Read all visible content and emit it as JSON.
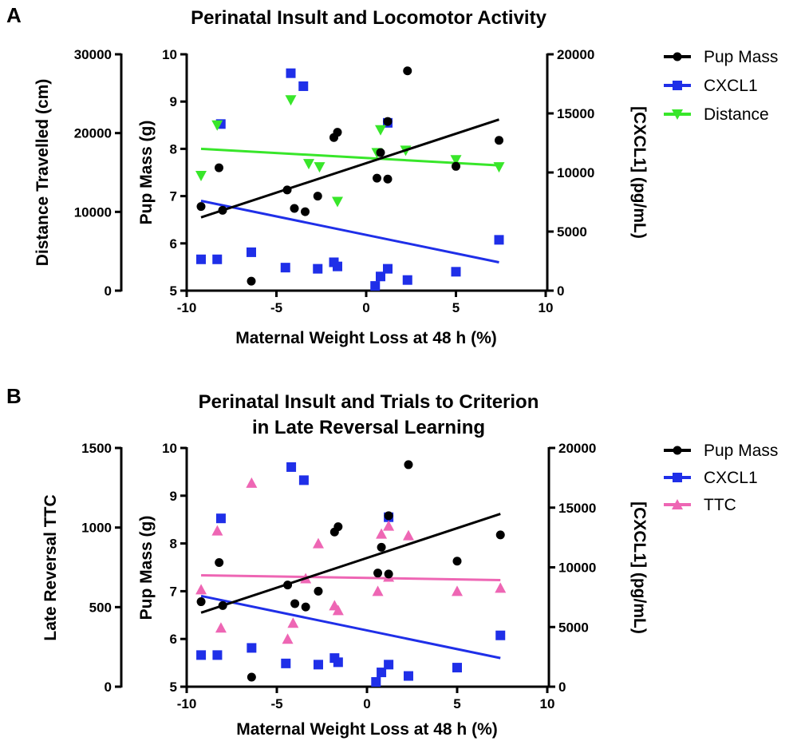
{
  "chart_data": [
    {
      "panel_label": "A",
      "type": "scatter",
      "title": [
        "Perinatal Insult and Locomotor Activity"
      ],
      "xlabel": "Maternal Weight Loss at 48 h (%)",
      "xlim": [
        -10,
        10
      ],
      "xticks": [
        -10,
        -5,
        0,
        5,
        10
      ],
      "axes": {
        "outer_left": {
          "label": "Distance Travelled (cm)",
          "lim": [
            0,
            30000
          ],
          "ticks": [
            0,
            10000,
            20000,
            30000
          ]
        },
        "left": {
          "label": "Pup Mass (g)",
          "lim": [
            5,
            10
          ],
          "ticks": [
            5,
            6,
            7,
            8,
            9,
            10
          ]
        },
        "right": {
          "label": "[CXCL1] (pg/mL)",
          "lim": [
            0,
            20000
          ],
          "ticks": [
            0,
            5000,
            10000,
            15000,
            20000
          ]
        }
      },
      "legend_position": "top-right",
      "series": [
        {
          "name": "Pup Mass",
          "axis": "left",
          "marker": "circle",
          "color": "#000000",
          "points": [
            [
              -9.2,
              6.78
            ],
            [
              -8.2,
              7.6
            ],
            [
              -8.0,
              6.7
            ],
            [
              -6.4,
              5.2
            ],
            [
              -4.4,
              7.13
            ],
            [
              -4.0,
              6.74
            ],
            [
              -3.4,
              6.67
            ],
            [
              -2.7,
              7.0
            ],
            [
              -1.8,
              8.24
            ],
            [
              -1.6,
              8.35
            ],
            [
              0.6,
              7.38
            ],
            [
              0.8,
              7.92
            ],
            [
              1.2,
              7.36
            ],
            [
              1.2,
              8.58
            ],
            [
              2.3,
              9.65
            ],
            [
              5.0,
              7.63
            ],
            [
              7.4,
              8.18
            ]
          ],
          "trend": [
            [
              -9.2,
              6.55
            ],
            [
              7.4,
              8.62
            ]
          ]
        },
        {
          "name": "CXCL1",
          "axis": "right",
          "marker": "square",
          "color": "#1f2fe8",
          "points": [
            [
              -9.2,
              2650
            ],
            [
              -8.3,
              2650
            ],
            [
              -8.1,
              14100
            ],
            [
              -6.4,
              3250
            ],
            [
              -4.5,
              1950
            ],
            [
              -4.2,
              18400
            ],
            [
              -3.5,
              17300
            ],
            [
              -2.7,
              1850
            ],
            [
              -1.8,
              2400
            ],
            [
              -1.6,
              2050
            ],
            [
              0.5,
              400
            ],
            [
              0.8,
              1200
            ],
            [
              1.2,
              14200
            ],
            [
              1.2,
              1850
            ],
            [
              2.3,
              900
            ],
            [
              5.0,
              1600
            ],
            [
              7.4,
              4300
            ]
          ],
          "trend": [
            [
              -9.2,
              7600
            ],
            [
              7.4,
              2400
            ]
          ]
        },
        {
          "name": "Distance",
          "axis": "outer_left",
          "marker": "triangle-down",
          "color": "#38e62a",
          "points": [
            [
              -9.2,
              14600
            ],
            [
              -8.3,
              21000
            ],
            [
              -4.2,
              24200
            ],
            [
              -3.2,
              16100
            ],
            [
              -2.6,
              15700
            ],
            [
              -1.6,
              11300
            ],
            [
              0.6,
              17500
            ],
            [
              0.8,
              20400
            ],
            [
              2.2,
              17800
            ],
            [
              5.0,
              16600
            ],
            [
              7.4,
              15700
            ]
          ],
          "trend": [
            [
              -9.2,
              18000
            ],
            [
              7.4,
              15900
            ]
          ]
        }
      ]
    },
    {
      "panel_label": "B",
      "type": "scatter",
      "title": [
        "Perinatal Insult and Trials to Criterion",
        "in Late Reversal Learning"
      ],
      "xlabel": "Maternal Weight Loss at 48 h (%)",
      "xlim": [
        -10,
        10
      ],
      "xticks": [
        -10,
        -5,
        0,
        5,
        10
      ],
      "axes": {
        "outer_left": {
          "label": "Late Reversal TTC",
          "lim": [
            0,
            1500
          ],
          "ticks": [
            0,
            500,
            1000,
            1500
          ]
        },
        "left": {
          "label": "Pup Mass (g)",
          "lim": [
            5,
            10
          ],
          "ticks": [
            5,
            6,
            7,
            8,
            9,
            10
          ]
        },
        "right": {
          "label": "[CXCL1] (pg/mL)",
          "lim": [
            0,
            20000
          ],
          "ticks": [
            0,
            5000,
            10000,
            15000,
            20000
          ]
        }
      },
      "legend_position": "top-right",
      "series": [
        {
          "name": "Pup Mass",
          "axis": "left",
          "marker": "circle",
          "color": "#000000",
          "points": [
            [
              -9.2,
              6.78
            ],
            [
              -8.2,
              7.6
            ],
            [
              -8.0,
              6.7
            ],
            [
              -6.4,
              5.2
            ],
            [
              -4.4,
              7.13
            ],
            [
              -4.0,
              6.74
            ],
            [
              -3.4,
              6.67
            ],
            [
              -2.7,
              7.0
            ],
            [
              -1.8,
              8.24
            ],
            [
              -1.6,
              8.35
            ],
            [
              0.6,
              7.38
            ],
            [
              0.8,
              7.92
            ],
            [
              1.2,
              7.36
            ],
            [
              1.2,
              8.58
            ],
            [
              2.3,
              9.65
            ],
            [
              5.0,
              7.63
            ],
            [
              7.4,
              8.18
            ]
          ],
          "trend": [
            [
              -9.2,
              6.55
            ],
            [
              7.4,
              8.62
            ]
          ]
        },
        {
          "name": "CXCL1",
          "axis": "right",
          "marker": "square",
          "color": "#1f2fe8",
          "points": [
            [
              -9.2,
              2650
            ],
            [
              -8.3,
              2650
            ],
            [
              -8.1,
              14100
            ],
            [
              -6.4,
              3250
            ],
            [
              -4.5,
              1950
            ],
            [
              -4.2,
              18400
            ],
            [
              -3.5,
              17300
            ],
            [
              -2.7,
              1850
            ],
            [
              -1.8,
              2400
            ],
            [
              -1.6,
              2050
            ],
            [
              0.5,
              400
            ],
            [
              0.8,
              1200
            ],
            [
              1.2,
              14200
            ],
            [
              1.2,
              1850
            ],
            [
              2.3,
              900
            ],
            [
              5.0,
              1600
            ],
            [
              7.4,
              4300
            ]
          ],
          "trend": [
            [
              -9.2,
              7600
            ],
            [
              7.4,
              2400
            ]
          ]
        },
        {
          "name": "TTC",
          "axis": "outer_left",
          "marker": "triangle-up",
          "color": "#ee66b4",
          "points": [
            [
              -9.2,
              610
            ],
            [
              -8.3,
              980
            ],
            [
              -8.1,
              370
            ],
            [
              -6.4,
              1280
            ],
            [
              -4.4,
              300
            ],
            [
              -4.1,
              400
            ],
            [
              -3.4,
              680
            ],
            [
              -2.7,
              900
            ],
            [
              -1.8,
              510
            ],
            [
              -1.6,
              480
            ],
            [
              0.6,
              600
            ],
            [
              0.8,
              960
            ],
            [
              1.2,
              690
            ],
            [
              1.2,
              1010
            ],
            [
              2.3,
              950
            ],
            [
              5.0,
              600
            ],
            [
              7.4,
              620
            ]
          ],
          "trend": [
            [
              -9.2,
              700
            ],
            [
              7.4,
              670
            ]
          ]
        }
      ]
    }
  ]
}
